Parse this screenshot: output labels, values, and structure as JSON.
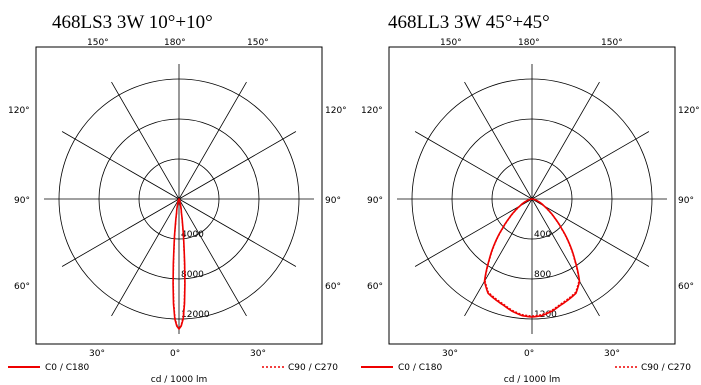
{
  "chart_data": [
    {
      "type": "polar",
      "title": "468LS3  3W    10°+10°",
      "unit_label": "cd / 1000 lm",
      "max": 13500,
      "ring_values": [
        4000,
        8000,
        12000
      ],
      "angle_labels": [
        "150°",
        "180°",
        "150°",
        "120°",
        "120°",
        "90°",
        "90°",
        "60°",
        "60°",
        "30°",
        "0°",
        "30°"
      ],
      "series": [
        {
          "name": "C0 / C180",
          "color": "#ee0000",
          "style": "solid",
          "angles": [
            0,
            1,
            2,
            3,
            4,
            5,
            6,
            8,
            10,
            15,
            20,
            30,
            45,
            60,
            75,
            90
          ],
          "values": [
            13000,
            12700,
            12000,
            10500,
            8500,
            6500,
            4800,
            2600,
            1400,
            500,
            220,
            80,
            30,
            10,
            3,
            0
          ]
        },
        {
          "name": "C90 / C270",
          "color": "#ee0000",
          "style": "dotted",
          "angles": [
            0,
            1,
            2,
            3,
            4,
            5,
            6,
            8,
            10,
            15,
            20,
            30,
            45,
            60,
            75,
            90
          ],
          "values": [
            13000,
            12600,
            11800,
            10200,
            8200,
            6200,
            4500,
            2400,
            1300,
            450,
            200,
            70,
            25,
            8,
            2,
            0
          ]
        }
      ]
    },
    {
      "type": "polar",
      "title": "468LL3  3W      45°+45°",
      "unit_label": "cd / 1000 lm",
      "max": 1350,
      "ring_values": [
        400,
        800,
        1200
      ],
      "angle_labels": [
        "150°",
        "180°",
        "150°",
        "120°",
        "120°",
        "90°",
        "90°",
        "60°",
        "60°",
        "30°",
        "0°",
        "30°"
      ],
      "series": [
        {
          "name": "C0 / C180",
          "color": "#ee0000",
          "style": "solid",
          "angles": [
            0,
            5,
            10,
            15,
            20,
            25,
            30,
            35,
            40,
            45,
            50,
            55,
            60,
            70,
            80,
            90
          ],
          "values": [
            1180,
            1170,
            1140,
            1100,
            1070,
            1040,
            950,
            750,
            580,
            420,
            300,
            210,
            140,
            60,
            15,
            0
          ]
        },
        {
          "name": "C90 / C270",
          "color": "#ee0000",
          "style": "dotted",
          "angles": [
            0,
            5,
            10,
            15,
            20,
            25,
            30,
            35,
            40,
            45,
            50,
            55,
            60,
            70,
            80,
            90
          ],
          "values": [
            1170,
            1160,
            1130,
            1090,
            1060,
            1030,
            940,
            740,
            570,
            410,
            290,
            200,
            130,
            55,
            12,
            0
          ]
        }
      ]
    }
  ]
}
